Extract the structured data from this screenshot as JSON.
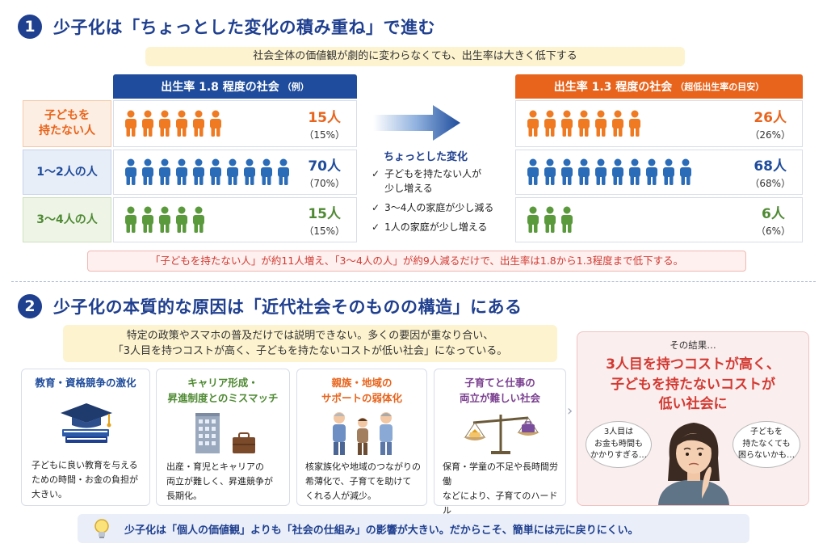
{
  "colors": {
    "navy": "#1f3f8f",
    "blue_header": "#1f4c9c",
    "orange_header": "#e8641c",
    "orange": "#ef7a22",
    "blue": "#2b6cb8",
    "green": "#5a9a3c",
    "red": "#d23a32",
    "yellow": "#fdf3cf"
  },
  "section1": {
    "number": "1",
    "title": "少子化は「ちょっとした変化の積み重ね」で進む",
    "banner": "社会全体の価値観が劇的に変わらなくても、出生率は大きく低下する",
    "left_header_main": "出生率 1.8 程度の社会",
    "left_header_note": "（例）",
    "right_header_main": "出生率 1.3 程度の社会",
    "right_header_note": "（超低出生率の目安）",
    "row_labels": [
      "子どもを\n持たない人",
      "1〜2人の人",
      "3〜4人の人"
    ],
    "left_values": [
      {
        "count": "15人",
        "pct": "（15%）",
        "icons": 6
      },
      {
        "count": "70人",
        "pct": "（70%）",
        "icons": 10
      },
      {
        "count": "15人",
        "pct": "（15%）",
        "icons": 5
      }
    ],
    "right_values": [
      {
        "count": "26人",
        "pct": "（26%）",
        "icons": 7
      },
      {
        "count": "68人",
        "pct": "（68%）",
        "icons": 10
      },
      {
        "count": "6人",
        "pct": "（6%）",
        "icons": 3
      }
    ],
    "change_title": "ちょっとした変化",
    "changes": [
      "子どもを持たない人が\n少し増える",
      "3〜4人の家庭が少し減る",
      "1人の家庭が少し増える"
    ],
    "check_mark": "✓",
    "summary": "「子どもを持たない人」が約11人増え、「3〜4人の人」が約9人減るだけで、出生率は1.8から1.3程度まで低下する。"
  },
  "section2": {
    "number": "2",
    "title": "少子化の本質的な原因は「近代社会そのものの構造」にある",
    "banner_line1": "特定の政策やスマホの普及だけでは説明できない。多くの要因が重なり合い、",
    "banner_line2": "「3人目を持つコストが高く、子どもを持たないコストが低い社会」になっている。",
    "cards": [
      {
        "title": "教育・資格競争の激化",
        "text": "子どもに良い教育を与える\nための時間・お金の負担が\n大きい。",
        "icon": "graduation-cap-books-icon"
      },
      {
        "title": "キャリア形成・\n昇進制度とのミスマッチ",
        "text": "出産・育児とキャリアの\n両立が難しく、昇進競争が\n長期化。",
        "icon": "office-building-briefcase-icon"
      },
      {
        "title": "親族・地域の\nサポートの弱体化",
        "text": "核家族化や地域のつながりの\n希薄化で、子育てを助けて\nくれる人が減少。",
        "icon": "family-people-icon"
      },
      {
        "title": "子育てと仕事の\n両立が難しい社会",
        "text": "保育・学童の不足や長時間労働\nなどにより、子育てのハードル\nが高い。",
        "icon": "balance-scale-house-bag-icon"
      }
    ],
    "result_label": "その結果…",
    "result_text": "3人目を持つコストが高く、\n子どもを持たないコストが\n低い社会に",
    "bubble_left": "3人目は\nお金も時間も\nかかりすぎる…",
    "bubble_right": "子どもを\n持たなくても\n困らないかも…",
    "chevron": "›",
    "footer": "少子化は「個人の価値観」よりも「社会の仕組み」の影響が大きい。だからこそ、簡単には元に戻りにくい。"
  }
}
